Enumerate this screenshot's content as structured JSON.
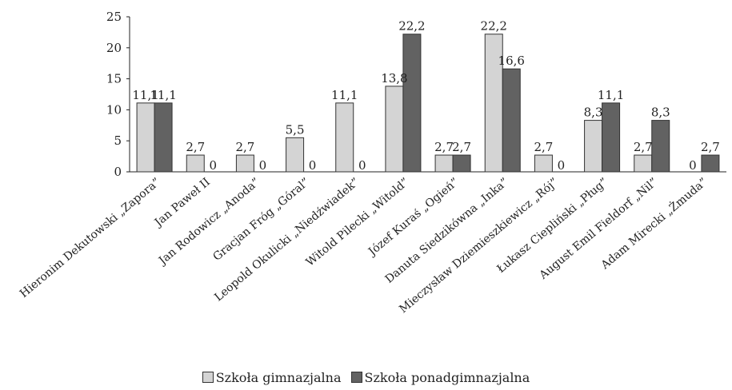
{
  "chart_data": {
    "type": "bar",
    "categories": [
      "Hieronim Dekutowski „Zapora”",
      "Jan Paweł II",
      "Jan Rodowicz „Anoda”",
      "Gracjan Fróg „Góral”",
      "Leopold Okulicki „Niedźwiadek”",
      "Witold Pilecki „Witold”",
      "Józef Kuraś „Ogień”",
      "Danuta Siedzikówna „Inka”",
      "Mieczysław Dziemieszkiewicz „Rój”",
      "Łukasz Ciepliński „Pług”",
      "August Emil Fieldorf „Nil”",
      "Adam Mirecki „Żmuda”"
    ],
    "series": [
      {
        "name": "Szkoła gimnazjalna",
        "color": "#d4d4d4",
        "values": [
          11.1,
          2.7,
          2.7,
          5.5,
          11.1,
          13.8,
          2.7,
          22.2,
          2.7,
          8.3,
          2.7,
          0
        ],
        "labels": [
          "11,1",
          "2,7",
          "2,7",
          "5,5",
          "11,1",
          "13,8",
          "2,7",
          "22,2",
          "2,7",
          "8,3",
          "2,7",
          "0"
        ]
      },
      {
        "name": "Szkoła ponadgimnazjalna",
        "color": "#626262",
        "values": [
          11.1,
          0,
          0,
          0,
          0,
          22.2,
          2.7,
          16.6,
          0,
          11.1,
          8.3,
          2.7
        ],
        "labels": [
          "11,1",
          "0",
          "0",
          "0",
          "0",
          "22,2",
          "2,7",
          "16,6",
          "0",
          "11,1",
          "8,3",
          "2,7"
        ]
      }
    ],
    "yticks": [
      "0",
      "5",
      "10",
      "15",
      "20",
      "25"
    ],
    "ylim": [
      0,
      25
    ],
    "grid": false,
    "legend_position": "bottom-center"
  }
}
